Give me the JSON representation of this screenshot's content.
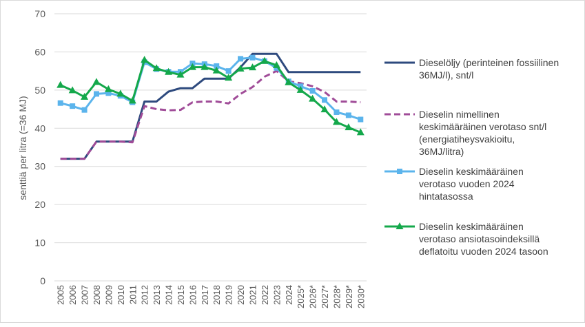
{
  "chart_data": {
    "type": "line",
    "title": "",
    "xlabel": "",
    "ylabel": "senttiä per litra (=36 MJ)",
    "ylim": [
      0,
      70
    ],
    "yticks": [
      0,
      10,
      20,
      30,
      40,
      50,
      60,
      70
    ],
    "grid": true,
    "legend_position": "right",
    "categories": [
      "2005",
      "2006",
      "2007",
      "2008",
      "2009",
      "2010",
      "2011",
      "2012",
      "2013",
      "2014",
      "2015",
      "2016",
      "2017",
      "2018",
      "2019",
      "2020",
      "2021",
      "2022",
      "2023",
      "2024",
      "2025*",
      "2026*",
      "2027*",
      "2028*",
      "2029*",
      "2030*"
    ],
    "series": [
      {
        "name": "Dieselöljy (perinteinen fossiilinen 36MJ/l), snt/l",
        "legend_lines": [
          "Dieselöljy (perinteinen fossiilinen",
          "36MJ/l), snt/l"
        ],
        "color": "#2E4A7E",
        "style": "solid",
        "marker": "none",
        "values": [
          32,
          32,
          32,
          36.5,
          36.5,
          36.5,
          36.5,
          47,
          47,
          49.6,
          50.5,
          50.5,
          53,
          53,
          53,
          56,
          59.5,
          59.5,
          59.5,
          54.7,
          54.7,
          54.7,
          54.7,
          54.7,
          54.7,
          54.7
        ]
      },
      {
        "name": "Dieselin nimellinen keskimääräinen verotaso snt/l (energiatiheysvakioitu, 36MJ/litra)",
        "legend_lines": [
          "Dieselin nimellinen",
          "keskimääräinen verotaso snt/l",
          "(energiatiheysvakioitu,",
          "36MJ/litra)"
        ],
        "color": "#A04C98",
        "style": "dashed",
        "marker": "none",
        "values": [
          32,
          32,
          32,
          36.5,
          36.5,
          36.5,
          36.3,
          45.8,
          45,
          44.7,
          44.8,
          46.8,
          47,
          47,
          46.5,
          49,
          50.8,
          53.5,
          55,
          52.3,
          51.8,
          51,
          49.5,
          47,
          47,
          46.8
        ]
      },
      {
        "name": "Dieselin keskimääräinen verotaso vuoden 2024 hintatasossa",
        "legend_lines": [
          "Dieselin keskimääräinen",
          "verotaso vuoden 2024",
          "hintatasossa"
        ],
        "color": "#5BB4EC",
        "style": "solid",
        "marker": "square",
        "values": [
          46.6,
          45.8,
          44.8,
          49,
          49.2,
          48.5,
          46.8,
          57.3,
          55.5,
          54.8,
          54.8,
          57,
          56.8,
          56.3,
          55,
          58.2,
          58.5,
          57.6,
          55.8,
          52.3,
          51,
          49.8,
          47.4,
          44.2,
          43.4,
          42.3
        ]
      },
      {
        "name": "Dieselin keskimääräinen verotaso ansiotasoindeksillä deflatoitu vuoden 2024 tasoon",
        "legend_lines": [
          "Dieselin keskimääräinen",
          "verotaso ansiotasoindeksillä",
          "deflatoitu vuoden 2024 tasoon"
        ],
        "color": "#14A84B",
        "style": "solid",
        "marker": "triangle",
        "values": [
          51.3,
          49.9,
          48.2,
          52.1,
          50.2,
          49,
          47.2,
          57.9,
          55.7,
          54.7,
          54,
          56,
          56,
          55.1,
          53.2,
          55.6,
          55.9,
          57.6,
          56.5,
          52,
          50,
          47.7,
          44.9,
          41.6,
          40.2,
          38.9
        ]
      }
    ]
  }
}
